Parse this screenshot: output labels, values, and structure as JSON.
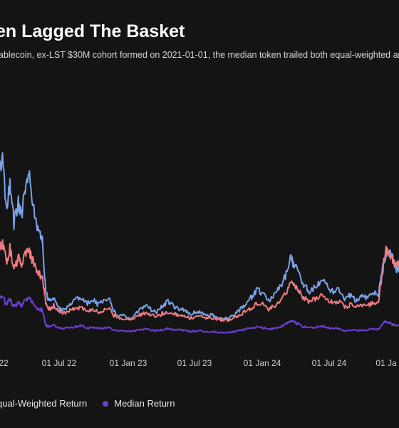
{
  "chart_data": {
    "type": "line",
    "title": "en Lagged The Basket",
    "subtitle": "ablecoin, ex-LST $30M cohort formed on 2021-01-01, the median token trailed both equal-weighted and",
    "x_ticks": [
      "22",
      "01 Jul 22",
      "01 Jan 23",
      "01 Jul 23",
      "01 Jan 24",
      "01 Jul 24",
      "01 Ja"
    ],
    "legend": [
      {
        "label": "qual-Weighted Return",
        "color": "#f07c82"
      },
      {
        "label": "Median Return",
        "color": "#6b3fd6"
      }
    ],
    "grid": false,
    "series": [
      {
        "key": "upper",
        "color": "#7aa3ea",
        "points": [
          [
            "2022-01-01",
            11.5
          ],
          [
            "2022-01-12",
            12.5
          ],
          [
            "2022-01-22",
            9.0
          ],
          [
            "2022-02-01",
            10.8
          ],
          [
            "2022-02-12",
            8.2
          ],
          [
            "2022-02-24",
            9.5
          ],
          [
            "2022-03-05",
            8.6
          ],
          [
            "2022-03-15",
            10.6
          ],
          [
            "2022-03-25",
            11.3
          ],
          [
            "2022-04-04",
            9.6
          ],
          [
            "2022-04-15",
            8.1
          ],
          [
            "2022-04-25",
            7.4
          ],
          [
            "2022-05-01",
            6.9
          ],
          [
            "2022-05-10",
            3.6
          ],
          [
            "2022-05-20",
            2.9
          ],
          [
            "2022-06-01",
            3.1
          ],
          [
            "2022-06-15",
            2.4
          ],
          [
            "2022-07-01",
            2.3
          ],
          [
            "2022-07-15",
            2.7
          ],
          [
            "2022-08-01",
            3.0
          ],
          [
            "2022-08-15",
            3.2
          ],
          [
            "2022-09-01",
            2.8
          ],
          [
            "2022-09-15",
            3.0
          ],
          [
            "2022-10-01",
            2.7
          ],
          [
            "2022-10-15",
            2.9
          ],
          [
            "2022-11-01",
            3.1
          ],
          [
            "2022-11-10",
            2.3
          ],
          [
            "2022-11-25",
            2.0
          ],
          [
            "2022-12-15",
            1.9
          ],
          [
            "2023-01-01",
            1.8
          ],
          [
            "2023-01-20",
            2.3
          ],
          [
            "2023-02-05",
            2.6
          ],
          [
            "2023-02-20",
            2.4
          ],
          [
            "2023-03-10",
            2.2
          ],
          [
            "2023-03-25",
            2.6
          ],
          [
            "2023-04-10",
            2.9
          ],
          [
            "2023-04-25",
            2.6
          ],
          [
            "2023-05-10",
            2.4
          ],
          [
            "2023-05-25",
            2.3
          ],
          [
            "2023-06-10",
            2.0
          ],
          [
            "2023-06-25",
            2.2
          ],
          [
            "2023-07-10",
            2.2
          ],
          [
            "2023-07-25",
            2.0
          ],
          [
            "2023-08-10",
            2.0
          ],
          [
            "2023-08-25",
            1.8
          ],
          [
            "2023-09-10",
            1.7
          ],
          [
            "2023-09-25",
            1.8
          ],
          [
            "2023-10-10",
            2.0
          ],
          [
            "2023-10-25",
            2.4
          ],
          [
            "2023-11-10",
            2.8
          ],
          [
            "2023-11-25",
            3.2
          ],
          [
            "2023-12-10",
            3.7
          ],
          [
            "2023-12-25",
            3.4
          ],
          [
            "2024-01-10",
            3.0
          ],
          [
            "2024-01-25",
            3.3
          ],
          [
            "2024-02-10",
            3.8
          ],
          [
            "2024-02-25",
            4.6
          ],
          [
            "2024-03-10",
            5.8
          ],
          [
            "2024-03-20",
            5.4
          ],
          [
            "2024-04-01",
            5.0
          ],
          [
            "2024-04-15",
            4.0
          ],
          [
            "2024-05-01",
            3.6
          ],
          [
            "2024-05-20",
            4.0
          ],
          [
            "2024-06-05",
            4.4
          ],
          [
            "2024-06-20",
            3.9
          ],
          [
            "2024-07-05",
            3.5
          ],
          [
            "2024-07-20",
            3.7
          ],
          [
            "2024-08-05",
            3.1
          ],
          [
            "2024-08-20",
            3.3
          ],
          [
            "2024-09-05",
            3.0
          ],
          [
            "2024-09-20",
            3.2
          ],
          [
            "2024-10-05",
            3.2
          ],
          [
            "2024-10-20",
            3.5
          ],
          [
            "2024-11-05",
            3.3
          ],
          [
            "2024-11-15",
            4.8
          ],
          [
            "2024-11-25",
            6.0
          ],
          [
            "2024-12-05",
            6.2
          ],
          [
            "2024-12-15",
            5.7
          ],
          [
            "2024-12-25",
            5.0
          ],
          [
            "2025-01-05",
            5.3
          ]
        ]
      },
      {
        "key": "equal-weighted",
        "color": "#f07c82",
        "points": [
          [
            "2022-01-01",
            6.2
          ],
          [
            "2022-01-12",
            6.8
          ],
          [
            "2022-01-22",
            5.6
          ],
          [
            "2022-02-01",
            6.4
          ],
          [
            "2022-02-12",
            5.1
          ],
          [
            "2022-02-24",
            5.8
          ],
          [
            "2022-03-05",
            5.3
          ],
          [
            "2022-03-15",
            6.0
          ],
          [
            "2022-03-25",
            6.3
          ],
          [
            "2022-04-04",
            5.6
          ],
          [
            "2022-04-15",
            5.0
          ],
          [
            "2022-04-25",
            4.7
          ],
          [
            "2022-05-01",
            4.4
          ],
          [
            "2022-05-10",
            2.8
          ],
          [
            "2022-05-20",
            2.4
          ],
          [
            "2022-06-01",
            2.6
          ],
          [
            "2022-06-15",
            2.2
          ],
          [
            "2022-07-01",
            2.1
          ],
          [
            "2022-07-15",
            2.3
          ],
          [
            "2022-08-01",
            2.4
          ],
          [
            "2022-08-15",
            2.5
          ],
          [
            "2022-09-01",
            2.3
          ],
          [
            "2022-09-15",
            2.4
          ],
          [
            "2022-10-01",
            2.2
          ],
          [
            "2022-10-15",
            2.3
          ],
          [
            "2022-11-01",
            2.5
          ],
          [
            "2022-11-10",
            2.0
          ],
          [
            "2022-11-25",
            1.8
          ],
          [
            "2022-12-15",
            1.7
          ],
          [
            "2023-01-01",
            1.7
          ],
          [
            "2023-01-20",
            2.0
          ],
          [
            "2023-02-05",
            2.1
          ],
          [
            "2023-02-20",
            2.0
          ],
          [
            "2023-03-10",
            1.9
          ],
          [
            "2023-03-25",
            2.1
          ],
          [
            "2023-04-10",
            2.2
          ],
          [
            "2023-04-25",
            2.1
          ],
          [
            "2023-05-10",
            2.0
          ],
          [
            "2023-05-25",
            1.9
          ],
          [
            "2023-06-10",
            1.8
          ],
          [
            "2023-06-25",
            1.9
          ],
          [
            "2023-07-10",
            1.9
          ],
          [
            "2023-07-25",
            1.8
          ],
          [
            "2023-08-10",
            1.8
          ],
          [
            "2023-08-25",
            1.7
          ],
          [
            "2023-09-10",
            1.6
          ],
          [
            "2023-09-25",
            1.7
          ],
          [
            "2023-10-10",
            1.8
          ],
          [
            "2023-10-25",
            2.0
          ],
          [
            "2023-11-10",
            2.3
          ],
          [
            "2023-11-25",
            2.5
          ],
          [
            "2023-12-10",
            2.8
          ],
          [
            "2023-12-25",
            2.7
          ],
          [
            "2024-01-10",
            2.4
          ],
          [
            "2024-01-25",
            2.6
          ],
          [
            "2024-02-10",
            2.9
          ],
          [
            "2024-02-25",
            3.4
          ],
          [
            "2024-03-10",
            4.1
          ],
          [
            "2024-03-20",
            3.9
          ],
          [
            "2024-04-01",
            3.6
          ],
          [
            "2024-04-15",
            3.1
          ],
          [
            "2024-05-01",
            2.9
          ],
          [
            "2024-05-20",
            3.1
          ],
          [
            "2024-06-05",
            3.3
          ],
          [
            "2024-06-20",
            3.0
          ],
          [
            "2024-07-05",
            2.8
          ],
          [
            "2024-07-20",
            2.9
          ],
          [
            "2024-08-05",
            2.5
          ],
          [
            "2024-08-20",
            2.7
          ],
          [
            "2024-09-05",
            2.5
          ],
          [
            "2024-09-20",
            2.6
          ],
          [
            "2024-10-05",
            2.6
          ],
          [
            "2024-10-20",
            2.8
          ],
          [
            "2024-11-05",
            2.7
          ],
          [
            "2024-11-15",
            4.6
          ],
          [
            "2024-11-25",
            6.3
          ],
          [
            "2024-12-05",
            6.0
          ],
          [
            "2024-12-15",
            5.6
          ],
          [
            "2024-12-25",
            5.4
          ],
          [
            "2025-01-05",
            5.5
          ]
        ]
      },
      {
        "key": "median",
        "color": "#6b3fd6",
        "points": [
          [
            "2022-01-01",
            3.0
          ],
          [
            "2022-01-12",
            3.2
          ],
          [
            "2022-01-22",
            2.7
          ],
          [
            "2022-02-01",
            3.0
          ],
          [
            "2022-02-12",
            2.5
          ],
          [
            "2022-02-24",
            2.8
          ],
          [
            "2022-03-05",
            2.6
          ],
          [
            "2022-03-15",
            3.0
          ],
          [
            "2022-03-25",
            3.1
          ],
          [
            "2022-04-04",
            2.8
          ],
          [
            "2022-04-15",
            2.5
          ],
          [
            "2022-04-25",
            2.4
          ],
          [
            "2022-05-01",
            2.3
          ],
          [
            "2022-05-10",
            1.3
          ],
          [
            "2022-05-20",
            1.2
          ],
          [
            "2022-06-01",
            1.3
          ],
          [
            "2022-06-15",
            1.1
          ],
          [
            "2022-07-01",
            1.1
          ],
          [
            "2022-07-15",
            1.2
          ],
          [
            "2022-08-01",
            1.2
          ],
          [
            "2022-08-15",
            1.3
          ],
          [
            "2022-09-01",
            1.1
          ],
          [
            "2022-09-15",
            1.2
          ],
          [
            "2022-10-01",
            1.1
          ],
          [
            "2022-10-15",
            1.1
          ],
          [
            "2022-11-01",
            1.2
          ],
          [
            "2022-11-10",
            1.0
          ],
          [
            "2022-11-25",
            0.95
          ],
          [
            "2022-12-15",
            0.9
          ],
          [
            "2023-01-01",
            0.9
          ],
          [
            "2023-01-20",
            1.0
          ],
          [
            "2023-02-05",
            1.05
          ],
          [
            "2023-02-20",
            1.0
          ],
          [
            "2023-03-10",
            0.95
          ],
          [
            "2023-03-25",
            1.0
          ],
          [
            "2023-04-10",
            1.1
          ],
          [
            "2023-04-25",
            1.0
          ],
          [
            "2023-05-10",
            1.0
          ],
          [
            "2023-05-25",
            0.95
          ],
          [
            "2023-06-10",
            0.9
          ],
          [
            "2023-06-25",
            0.92
          ],
          [
            "2023-07-10",
            0.92
          ],
          [
            "2023-07-25",
            0.88
          ],
          [
            "2023-08-10",
            0.88
          ],
          [
            "2023-08-25",
            0.85
          ],
          [
            "2023-09-10",
            0.82
          ],
          [
            "2023-09-25",
            0.85
          ],
          [
            "2023-10-10",
            0.9
          ],
          [
            "2023-10-25",
            0.95
          ],
          [
            "2023-11-10",
            1.05
          ],
          [
            "2023-11-25",
            1.1
          ],
          [
            "2023-12-10",
            1.2
          ],
          [
            "2023-12-25",
            1.15
          ],
          [
            "2024-01-10",
            1.05
          ],
          [
            "2024-01-25",
            1.1
          ],
          [
            "2024-02-10",
            1.2
          ],
          [
            "2024-02-25",
            1.35
          ],
          [
            "2024-03-10",
            1.6
          ],
          [
            "2024-03-20",
            1.5
          ],
          [
            "2024-04-01",
            1.4
          ],
          [
            "2024-04-15",
            1.2
          ],
          [
            "2024-05-01",
            1.15
          ],
          [
            "2024-05-20",
            1.2
          ],
          [
            "2024-06-05",
            1.25
          ],
          [
            "2024-06-20",
            1.15
          ],
          [
            "2024-07-05",
            1.05
          ],
          [
            "2024-07-20",
            1.1
          ],
          [
            "2024-08-05",
            0.95
          ],
          [
            "2024-08-20",
            1.0
          ],
          [
            "2024-09-05",
            0.95
          ],
          [
            "2024-09-20",
            0.98
          ],
          [
            "2024-10-05",
            1.0
          ],
          [
            "2024-10-20",
            1.05
          ],
          [
            "2024-11-05",
            1.0
          ],
          [
            "2024-11-15",
            1.3
          ],
          [
            "2024-11-25",
            1.6
          ],
          [
            "2024-12-05",
            1.5
          ],
          [
            "2024-12-15",
            1.35
          ],
          [
            "2024-12-25",
            1.3
          ],
          [
            "2025-01-05",
            1.35
          ]
        ]
      }
    ]
  }
}
